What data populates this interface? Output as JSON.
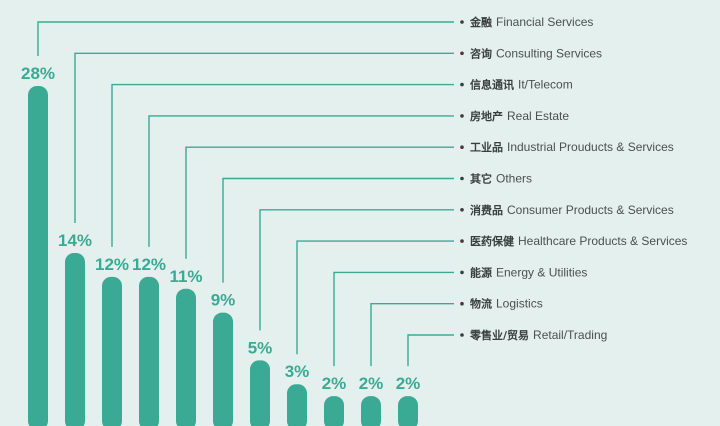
{
  "colors": {
    "bar": "#3aaa95",
    "leader": "#3aaa95",
    "background": "#e3f0ed"
  },
  "chart_data": {
    "type": "bar",
    "title": "",
    "xlabel": "",
    "ylabel": "",
    "ylim": [
      0,
      28
    ],
    "grid": false,
    "legend": "right",
    "unit": "%",
    "categories": [
      {
        "cn": "金融",
        "en": "Financial Services"
      },
      {
        "cn": "咨询",
        "en": "Consulting Services"
      },
      {
        "cn": "信息通讯",
        "en": "It/Telecom"
      },
      {
        "cn": "房地产",
        "en": "Real Estate"
      },
      {
        "cn": "工业品",
        "en": "Industrial Prouducts & Services"
      },
      {
        "cn": "其它",
        "en": "Others"
      },
      {
        "cn": "消费品",
        "en": "Consumer Products & Services"
      },
      {
        "cn": "医药保健",
        "en": "Healthcare Products & Services"
      },
      {
        "cn": "能源",
        "en": "Energy & Utilities"
      },
      {
        "cn": "物流",
        "en": "Logistics"
      },
      {
        "cn": "零售业/贸易",
        "en": "Retail/Trading"
      }
    ],
    "values": [
      28,
      14,
      12,
      12,
      11,
      9,
      5,
      3,
      2,
      2,
      2
    ],
    "value_labels": [
      "28%",
      "14%",
      "12%",
      "12%",
      "11%",
      "9%",
      "5%",
      "3%",
      "2%",
      "2%",
      "2%"
    ]
  }
}
